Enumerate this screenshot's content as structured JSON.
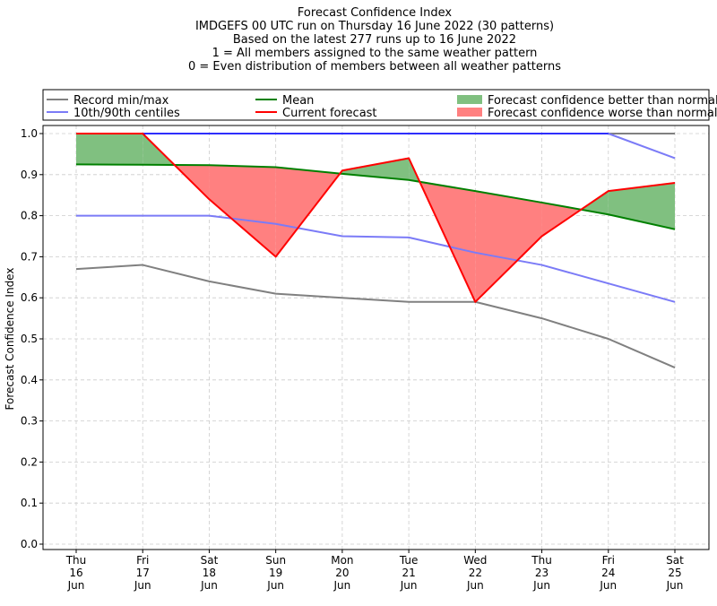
{
  "chart_data": {
    "type": "line",
    "title_lines": [
      "Forecast Confidence Index",
      "IMDGEFS 00 UTC run on Thursday 16 June 2022 (30 patterns)",
      "Based on the latest 277 runs up to 16 June 2022",
      "1 = All members assigned to the same weather pattern",
      "0 = Even distribution of members between all weather patterns"
    ],
    "xlabel": "",
    "ylabel": "Forecast Confidence Index",
    "categories": [
      [
        "Thu",
        "16",
        "Jun"
      ],
      [
        "Fri",
        "17",
        "Jun"
      ],
      [
        "Sat",
        "18",
        "Jun"
      ],
      [
        "Sun",
        "19",
        "Jun"
      ],
      [
        "Mon",
        "20",
        "Jun"
      ],
      [
        "Tue",
        "21",
        "Jun"
      ],
      [
        "Wed",
        "22",
        "Jun"
      ],
      [
        "Thu",
        "23",
        "Jun"
      ],
      [
        "Fri",
        "24",
        "Jun"
      ],
      [
        "Sat",
        "25",
        "Jun"
      ]
    ],
    "ylim": [
      0,
      1.0
    ],
    "yticks": [
      "0.0",
      "0.1",
      "0.2",
      "0.3",
      "0.4",
      "0.5",
      "0.6",
      "0.7",
      "0.8",
      "0.9",
      "1.0"
    ],
    "grid": true,
    "legend_position": "top",
    "legend": [
      {
        "label": "Record min/max",
        "kind": "line",
        "color": "#808080"
      },
      {
        "label": "Mean",
        "kind": "line",
        "color": "#008000"
      },
      {
        "label": "Forecast confidence better than normal",
        "kind": "patch",
        "color": "#80c080"
      },
      {
        "label": "10th/90th centiles",
        "kind": "line",
        "color": "#7b7bf7"
      },
      {
        "label": "Current forecast",
        "kind": "line",
        "color": "#ff0000"
      },
      {
        "label": "Forecast confidence worse than normal",
        "kind": "patch",
        "color": "#ff8080"
      }
    ],
    "series": [
      {
        "name": "Record min/max",
        "role": "record_max",
        "color": "#808080",
        "values": [
          1.0,
          1.0,
          1.0,
          1.0,
          1.0,
          1.0,
          1.0,
          1.0,
          1.0,
          1.0
        ]
      },
      {
        "name": "Record min/max",
        "role": "record_min",
        "color": "#808080",
        "values": [
          0.67,
          0.68,
          0.64,
          0.61,
          0.6,
          0.59,
          0.59,
          0.55,
          0.5,
          0.43
        ]
      },
      {
        "name": "10th/90th centiles",
        "role": "p90",
        "color": "#7b7bf7",
        "values": [
          1.0,
          1.0,
          1.0,
          1.0,
          1.0,
          1.0,
          1.0,
          1.0,
          1.0,
          0.94
        ]
      },
      {
        "name": "10th/90th centiles",
        "role": "p10",
        "color": "#7b7bf7",
        "values": [
          0.8,
          0.8,
          0.8,
          0.78,
          0.75,
          0.747,
          0.71,
          0.68,
          0.635,
          0.59
        ]
      },
      {
        "name": "Mean",
        "role": "mean",
        "color": "#008000",
        "values": [
          0.925,
          0.924,
          0.923,
          0.918,
          0.902,
          0.887,
          0.86,
          0.832,
          0.803,
          0.767
        ]
      },
      {
        "name": "Current forecast",
        "role": "current",
        "color": "#ff0000",
        "values": [
          1.0,
          1.0,
          0.84,
          0.7,
          0.91,
          0.94,
          0.59,
          0.75,
          0.86,
          0.88
        ]
      }
    ],
    "colors": {
      "better_fill": "#80c080",
      "worse_fill": "#ff8080",
      "grid": "#cccccc",
      "blue_top_line": "#0000ff"
    }
  }
}
